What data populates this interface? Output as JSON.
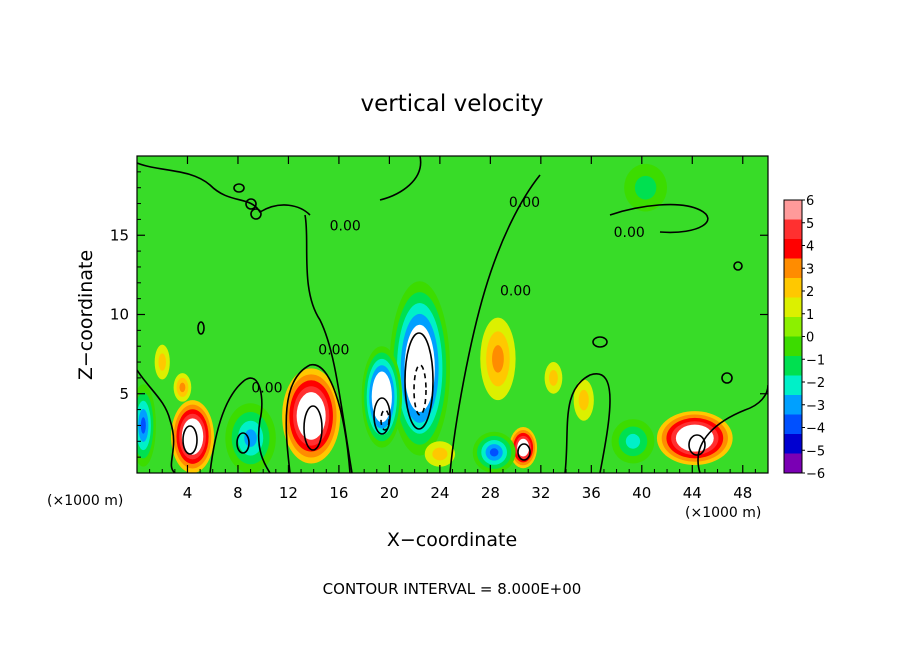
{
  "chart_data": {
    "type": "heatmap",
    "title": "vertical velocity",
    "xlabel": "X−coordinate",
    "ylabel": "Z−coordinate",
    "x_unit_left": "(×1000 m)",
    "x_unit_right": "(×1000 m)",
    "footer": "CONTOUR INTERVAL = 8.000E+00",
    "xlim": [
      0,
      50
    ],
    "ylim": [
      0,
      20
    ],
    "x_ticks": [
      4,
      8,
      12,
      16,
      20,
      24,
      28,
      32,
      36,
      40,
      44,
      48
    ],
    "y_ticks": [
      5,
      10,
      15
    ],
    "colorbar": {
      "levels": [
        -6,
        -5,
        -4,
        -3,
        -2,
        -1,
        0,
        1,
        2,
        3,
        4,
        5,
        6
      ],
      "labels": [
        "6",
        "5",
        "4",
        "3",
        "2",
        "1",
        "0",
        "−1",
        "−2",
        "−3",
        "−4",
        "−5",
        "−6"
      ],
      "colors": [
        "#ff9a9a",
        "#ff3030",
        "#ff0000",
        "#ff8c00",
        "#ffc800",
        "#dcf000",
        "#8cf000",
        "#3cdc00",
        "#00e050",
        "#00f0c8",
        "#00a0ff",
        "#0050ff",
        "#0000d0",
        "#7a00b4"
      ]
    },
    "contour_labels": [
      {
        "text": "0.00",
        "x": 16.5,
        "z": 15.6
      },
      {
        "text": "0.00",
        "x": 15.6,
        "z": 7.8
      },
      {
        "text": "0.00",
        "x": 30.0,
        "z": 11.5
      },
      {
        "text": "0.00",
        "x": 39.0,
        "z": 15.2
      },
      {
        "text": "0.00",
        "x": 10.3,
        "z": 5.4
      },
      {
        "text": "0.00",
        "x": 30.7,
        "z": 17.1
      }
    ],
    "cells": [
      {
        "x": 13.8,
        "z": 3.6,
        "w": 17,
        "rx": 2.3,
        "rz": 3.0
      },
      {
        "x": 4.4,
        "z": 2.3,
        "w": 16,
        "rx": 1.7,
        "rz": 2.3
      },
      {
        "x": 8.6,
        "z": 1.9,
        "w": 10,
        "rx": 1.4,
        "rz": 1.7
      },
      {
        "x": 44.2,
        "z": 2.2,
        "w": 9,
        "rx": 3.0,
        "rz": 1.7
      },
      {
        "x": 30.6,
        "z": 1.6,
        "w": 7,
        "rx": 1.1,
        "rz": 1.3
      },
      {
        "x": 28.6,
        "z": 7.2,
        "w": 3,
        "rx": 1.4,
        "rz": 2.6
      },
      {
        "x": 22.4,
        "z": 6.6,
        "w": -22,
        "rx": 2.4,
        "rz": 5.5
      },
      {
        "x": 19.4,
        "z": 4.8,
        "w": -14,
        "rx": 1.6,
        "rz": 3.2
      },
      {
        "x": 28.3,
        "z": 1.3,
        "w": -5,
        "rx": 1.7,
        "rz": 1.3
      },
      {
        "x": 0.5,
        "z": 3.0,
        "w": -5,
        "rx": 1.0,
        "rz": 2.6
      },
      {
        "x": 9.0,
        "z": 2.2,
        "w": -4,
        "rx": 2.0,
        "rz": 2.2
      },
      {
        "x": 39.3,
        "z": 2.0,
        "w": -3,
        "rx": 1.7,
        "rz": 1.4
      },
      {
        "x": 40.3,
        "z": 18.0,
        "w": -2,
        "rx": 1.7,
        "rz": 1.5
      },
      {
        "x": 3.6,
        "z": 5.4,
        "w": 3,
        "rx": 0.7,
        "rz": 0.9
      },
      {
        "x": 2.0,
        "z": 7.0,
        "w": 2,
        "rx": 0.6,
        "rz": 1.1
      },
      {
        "x": 35.4,
        "z": 4.6,
        "w": 2,
        "rx": 0.8,
        "rz": 1.3
      },
      {
        "x": 33.0,
        "z": 6.0,
        "w": 2,
        "rx": 0.7,
        "rz": 1.0
      },
      {
        "x": 24.0,
        "z": 1.2,
        "w": 1.5,
        "rx": 1.2,
        "rz": 0.8
      }
    ]
  }
}
